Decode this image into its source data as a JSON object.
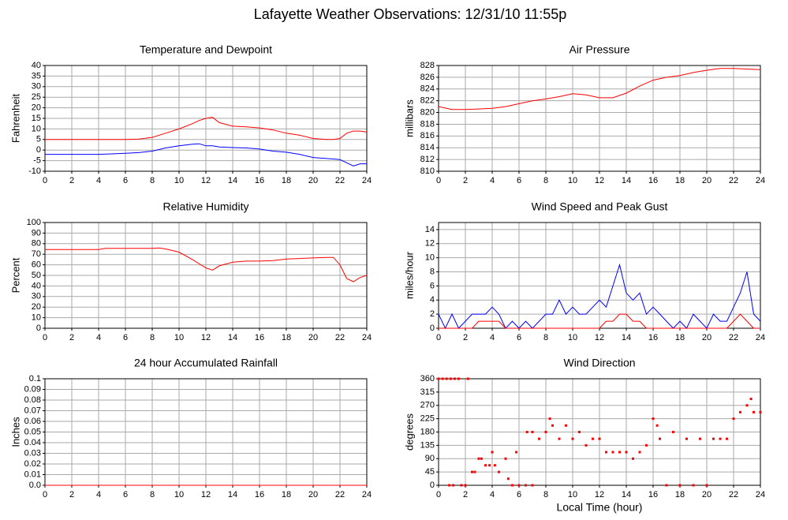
{
  "title": "Lafayette Weather Observations: 12/31/10 11:55p",
  "chart_data": [
    {
      "type": "line",
      "title": "Temperature and Dewpoint",
      "ylabel": "Fahrenheit",
      "grid": true,
      "x": [
        0,
        1,
        2,
        3,
        4,
        5,
        6,
        7,
        8,
        9,
        10,
        11,
        11.5,
        12,
        12.5,
        13,
        14,
        15,
        16,
        17,
        18,
        19,
        20,
        21,
        21.5,
        22,
        22.5,
        23,
        23.5,
        24
      ],
      "series": [
        {
          "name": "Temperature",
          "color": "#ff0000",
          "values": [
            5,
            5,
            5,
            5,
            5,
            5,
            5,
            5.2,
            6,
            8,
            10,
            12.5,
            14,
            15,
            15.5,
            13,
            11.3,
            11,
            10.5,
            9.5,
            8,
            7,
            5.5,
            5,
            5,
            5.5,
            8,
            9,
            9,
            8.5
          ]
        },
        {
          "name": "Dewpoint",
          "color": "#0000ff",
          "values": [
            -2,
            -2,
            -2,
            -2,
            -2,
            -1.8,
            -1.5,
            -1.2,
            -0.5,
            1,
            2,
            2.8,
            3,
            2,
            2,
            1.5,
            1.2,
            1,
            0.5,
            -0.5,
            -1,
            -2,
            -3.5,
            -4,
            -4.2,
            -4.5,
            -6,
            -7.5,
            -6.5,
            -6.5
          ]
        }
      ],
      "xlim": [
        0,
        24
      ],
      "xticks": [
        0,
        2,
        4,
        6,
        8,
        10,
        12,
        14,
        16,
        18,
        20,
        22,
        24
      ],
      "ylim": [
        -10,
        40
      ],
      "yticks": [
        -10,
        -5,
        0,
        5,
        10,
        15,
        20,
        25,
        30,
        35,
        40
      ]
    },
    {
      "type": "line",
      "title": "Air Pressure",
      "ylabel": "millibars",
      "grid": true,
      "x": [
        0,
        1,
        2,
        3,
        4,
        5,
        6,
        7,
        8,
        9,
        10,
        11,
        12,
        13,
        14,
        15,
        16,
        17,
        18,
        19,
        20,
        21,
        22,
        23,
        24
      ],
      "series": [
        {
          "name": "Pressure",
          "color": "#ff0000",
          "values": [
            821,
            820.5,
            820.5,
            820.6,
            820.7,
            821,
            821.5,
            822,
            822.3,
            822.7,
            823.2,
            823,
            822.5,
            822.5,
            823.3,
            824.5,
            825.5,
            826,
            826.3,
            826.8,
            827.2,
            827.5,
            827.5,
            827.4,
            827.3
          ]
        }
      ],
      "xlim": [
        0,
        24
      ],
      "xticks": [
        0,
        2,
        4,
        6,
        8,
        10,
        12,
        14,
        16,
        18,
        20,
        22,
        24
      ],
      "ylim": [
        810,
        828
      ],
      "yticks": [
        810,
        812,
        814,
        816,
        818,
        820,
        822,
        824,
        826,
        828
      ]
    },
    {
      "type": "line",
      "title": "Relative Humidity",
      "ylabel": "Percent",
      "grid": true,
      "x": [
        0,
        1,
        2,
        3,
        4,
        4.5,
        5,
        6,
        7,
        8,
        8.5,
        9,
        10,
        11,
        12,
        12.5,
        13,
        14,
        15,
        16,
        17,
        18,
        19,
        20,
        21,
        21.5,
        22,
        22.5,
        23,
        23.5,
        24
      ],
      "series": [
        {
          "name": "Humidity",
          "color": "#ff0000",
          "values": [
            74.5,
            74.5,
            74.5,
            74.5,
            74.5,
            75.5,
            75.5,
            75.5,
            75.5,
            75.5,
            76,
            75,
            72,
            65,
            57,
            55,
            59,
            62.5,
            63.5,
            63.5,
            64,
            65.5,
            66,
            66.5,
            67,
            67,
            60,
            47,
            44,
            48,
            50
          ]
        }
      ],
      "xlim": [
        0,
        24
      ],
      "xticks": [
        0,
        2,
        4,
        6,
        8,
        10,
        12,
        14,
        16,
        18,
        20,
        22,
        24
      ],
      "ylim": [
        0,
        100
      ],
      "yticks": [
        0,
        10,
        20,
        30,
        40,
        50,
        60,
        70,
        80,
        90,
        100
      ]
    },
    {
      "type": "line",
      "title": "Wind Speed and Peak Gust",
      "ylabel": "miles/hour",
      "grid": true,
      "x": [
        0,
        0.5,
        1,
        1.5,
        2,
        2.5,
        3,
        3.5,
        4,
        4.5,
        5,
        5.5,
        6,
        6.5,
        7,
        7.5,
        8,
        8.5,
        9,
        9.5,
        10,
        10.5,
        11,
        11.5,
        12,
        12.5,
        13,
        13.5,
        14,
        14.5,
        15,
        15.5,
        16,
        16.5,
        17,
        17.5,
        18,
        18.5,
        19,
        19.5,
        20,
        20.5,
        21,
        21.5,
        22,
        22.5,
        23,
        23.5,
        24
      ],
      "series": [
        {
          "name": "Speed",
          "color": "#0000ff",
          "values": [
            2,
            0,
            2,
            0,
            1,
            2,
            2,
            2,
            3,
            2,
            0,
            1,
            0,
            1,
            0,
            1,
            2,
            2,
            4,
            2,
            3,
            2,
            2,
            3,
            4,
            3,
            6,
            9,
            5,
            4,
            5,
            2,
            3,
            2,
            1,
            0,
            1,
            0,
            2,
            1,
            0,
            2,
            1,
            1,
            3,
            5,
            8,
            2,
            1
          ]
        },
        {
          "name": "Gust",
          "color": "#ff0000",
          "values": [
            0,
            0,
            0,
            0,
            0,
            0,
            1,
            1,
            1,
            1,
            0,
            0,
            0,
            0,
            0,
            0,
            0,
            0,
            0,
            0,
            0,
            0,
            0,
            0,
            0,
            1,
            1,
            2,
            2,
            1,
            1,
            0,
            0,
            0,
            0,
            0,
            0,
            0,
            0,
            0,
            0,
            0,
            0,
            0,
            1,
            2,
            1,
            0,
            0
          ]
        }
      ],
      "xlim": [
        0,
        24
      ],
      "xticks": [
        0,
        2,
        4,
        6,
        8,
        10,
        12,
        14,
        16,
        18,
        20,
        22,
        24
      ],
      "ylim": [
        0,
        15
      ],
      "yticks": [
        0,
        2,
        4,
        6,
        8,
        10,
        12,
        14
      ]
    },
    {
      "type": "line",
      "title": "24 hour Accumulated Rainfall",
      "ylabel": "Inches",
      "grid": true,
      "x": [
        0,
        2,
        4,
        6,
        8,
        10,
        12,
        14,
        16,
        18,
        20,
        22,
        24
      ],
      "series": [
        {
          "name": "Rainfall",
          "color": "#ff0000",
          "values": [
            0,
            0,
            0,
            0,
            0,
            0,
            0,
            0,
            0,
            0,
            0,
            0,
            0
          ]
        }
      ],
      "xlim": [
        0,
        24
      ],
      "xticks": [
        0,
        2,
        4,
        6,
        8,
        10,
        12,
        14,
        16,
        18,
        20,
        22,
        24
      ],
      "ylim": [
        0,
        0.1
      ],
      "yticks": [
        {
          "value": 0,
          "label": "0.0"
        },
        0.01,
        0.02,
        0.03,
        0.04,
        0.05,
        0.06,
        0.07,
        0.08,
        0.09,
        0.1
      ]
    },
    {
      "type": "scatter",
      "title": "Wind Direction",
      "ylabel": "degrees",
      "xlabel": "Local Time (hour)",
      "grid": true,
      "color": "#ff0000",
      "x": [
        0,
        0.3,
        0.6,
        0.9,
        1.2,
        1.5,
        0.8,
        1.1,
        1.7,
        2.0,
        2.2,
        2.5,
        2.7,
        3.0,
        3.2,
        3.5,
        3.8,
        4.0,
        4.2,
        4.5,
        5.0,
        5.2,
        5.5,
        5.8,
        6.0,
        6.5,
        7.0,
        6.6,
        7.0,
        7.5,
        8.0,
        8.3,
        8.5,
        9.0,
        9.5,
        10.0,
        10.5,
        11.0,
        11.5,
        12.0,
        12.5,
        13.0,
        13.5,
        14.0,
        14.5,
        15.0,
        15.5,
        16.0,
        16.3,
        16.5,
        17.0,
        17.5,
        18.0,
        18.5,
        19.0,
        19.5,
        20.0,
        20.5,
        21.0,
        21.5,
        22.0,
        22.5,
        23.0,
        23.3,
        23.5,
        24.0
      ],
      "values": [
        360,
        360,
        360,
        360,
        360,
        360,
        0,
        0,
        0,
        0,
        360,
        45,
        45,
        90,
        90,
        67.5,
        67.5,
        112,
        67.5,
        45,
        90,
        22,
        0,
        112,
        0,
        0,
        0,
        180,
        180,
        157,
        180,
        225,
        202,
        157,
        202,
        157,
        180,
        135,
        157,
        157,
        112,
        112,
        112,
        112,
        90,
        112,
        135,
        225,
        202,
        157,
        0,
        180,
        0,
        157,
        0,
        157,
        0,
        157,
        157,
        157,
        225,
        247,
        270,
        292,
        247,
        247
      ],
      "xlim": [
        0,
        24
      ],
      "xticks": [
        0,
        2,
        4,
        6,
        8,
        10,
        12,
        14,
        16,
        18,
        20,
        22,
        24
      ],
      "ylim": [
        0,
        360
      ],
      "yticks": [
        0,
        45,
        90,
        135,
        180,
        225,
        270,
        315,
        360
      ]
    }
  ]
}
